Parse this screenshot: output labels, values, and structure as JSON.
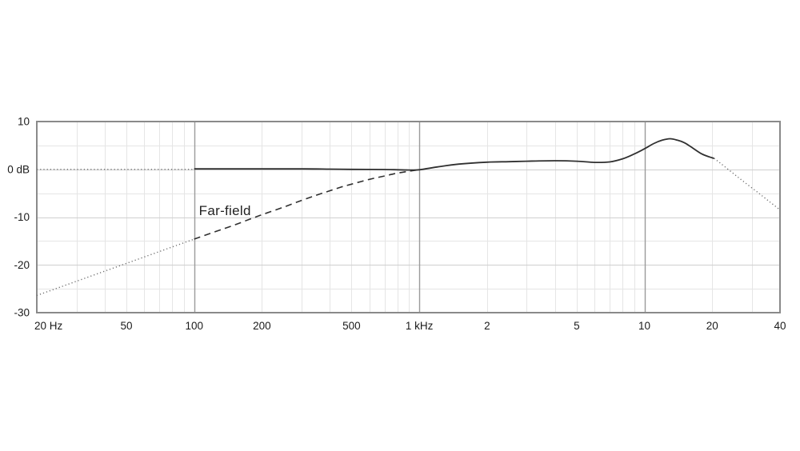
{
  "page": {
    "background": "#ffffff",
    "description": "Frequency response chart"
  },
  "colors": {
    "curve": "#303030",
    "dotted_curve": "#6e6e6e",
    "grid_minor": "#e5e5e5",
    "grid_major_h": "#cfcfcf",
    "grid_major_v": "#9b9b9b",
    "border": "#8a8a8a",
    "text": "#1b1b1b"
  },
  "chart_data": {
    "type": "line",
    "title": "",
    "xlabel": "",
    "ylabel": "",
    "grid": true,
    "legend_position": "none",
    "x_axis": {
      "scale": "log",
      "min_hz": 20,
      "max_hz": 40000,
      "ticks": [
        {
          "hz": 20,
          "label": "20 Hz"
        },
        {
          "hz": 50,
          "label": "50"
        },
        {
          "hz": 100,
          "label": "100"
        },
        {
          "hz": 200,
          "label": "200"
        },
        {
          "hz": 500,
          "label": "500"
        },
        {
          "hz": 1000,
          "label": "1 kHz"
        },
        {
          "hz": 2000,
          "label": "2"
        },
        {
          "hz": 5000,
          "label": "5"
        },
        {
          "hz": 10000,
          "label": "10"
        },
        {
          "hz": 20000,
          "label": "20"
        },
        {
          "hz": 40000,
          "label": "40"
        }
      ],
      "minor_grid_hz": [
        30,
        40,
        50,
        60,
        70,
        80,
        90,
        200,
        300,
        400,
        500,
        600,
        700,
        800,
        900,
        2000,
        3000,
        4000,
        5000,
        6000,
        7000,
        8000,
        9000,
        20000,
        30000
      ],
      "major_grid_hz": [
        100,
        1000,
        10000
      ]
    },
    "y_axis": {
      "min_db": -30,
      "max_db": 10,
      "ticks": [
        {
          "db": 10,
          "label": "10"
        },
        {
          "db": 0,
          "label": "0 dB"
        },
        {
          "db": -10,
          "label": "-10"
        },
        {
          "db": -20,
          "label": "-20"
        },
        {
          "db": -30,
          "label": "-30"
        }
      ],
      "minor_grid_db": [
        5,
        -5,
        -15,
        -25
      ],
      "major_grid_db": [
        0,
        -10,
        -20
      ]
    },
    "series": [
      {
        "name": "near-field-response-low-extension",
        "style": "dotted",
        "points": [
          [
            20,
            0
          ],
          [
            100,
            0
          ]
        ]
      },
      {
        "name": "near-field-response",
        "style": "solid",
        "points": [
          [
            100,
            0.1
          ],
          [
            200,
            0.1
          ],
          [
            300,
            0.1
          ],
          [
            400,
            0.05
          ],
          [
            500,
            0
          ],
          [
            700,
            -0.05
          ],
          [
            800,
            -0.1
          ],
          [
            900,
            -0.15
          ],
          [
            1000,
            -0.1
          ],
          [
            1200,
            0.5
          ],
          [
            1500,
            1.1
          ],
          [
            2000,
            1.5
          ],
          [
            2500,
            1.6
          ],
          [
            3000,
            1.7
          ],
          [
            4000,
            1.8
          ],
          [
            5000,
            1.7
          ],
          [
            6000,
            1.45
          ],
          [
            7000,
            1.55
          ],
          [
            8000,
            2.2
          ],
          [
            9000,
            3.2
          ],
          [
            10000,
            4.3
          ],
          [
            11000,
            5.4
          ],
          [
            12000,
            6.1
          ],
          [
            13000,
            6.4
          ],
          [
            14000,
            6.1
          ],
          [
            15000,
            5.6
          ],
          [
            16000,
            4.8
          ],
          [
            18000,
            3.2
          ],
          [
            20000,
            2.4
          ],
          [
            20400,
            2.3
          ]
        ]
      },
      {
        "name": "near-field-response-high-extension",
        "style": "dotted",
        "points": [
          [
            20400,
            2.3
          ],
          [
            22000,
            1.1
          ],
          [
            25000,
            -1.0
          ],
          [
            28000,
            -2.8
          ],
          [
            32000,
            -4.9
          ],
          [
            36000,
            -6.8
          ],
          [
            40000,
            -8.5
          ]
        ]
      },
      {
        "name": "far-field-response-low-extension",
        "style": "dotted",
        "points": [
          [
            20,
            -26.4
          ],
          [
            100,
            -14.6
          ]
        ]
      },
      {
        "name": "far-field-response",
        "style": "dashed",
        "points": [
          [
            100,
            -14.6
          ],
          [
            125,
            -13.0
          ],
          [
            150,
            -11.7
          ],
          [
            175,
            -10.5
          ],
          [
            200,
            -9.5
          ],
          [
            250,
            -7.9
          ],
          [
            300,
            -6.5
          ],
          [
            350,
            -5.4
          ],
          [
            400,
            -4.5
          ],
          [
            450,
            -3.7
          ],
          [
            500,
            -3.1
          ],
          [
            600,
            -2.1
          ],
          [
            700,
            -1.4
          ],
          [
            800,
            -0.8
          ],
          [
            900,
            -0.4
          ],
          [
            980,
            -0.15
          ]
        ]
      }
    ],
    "annotations": [
      {
        "text": "Far-field",
        "hz": 105,
        "db": -8.7
      }
    ]
  }
}
